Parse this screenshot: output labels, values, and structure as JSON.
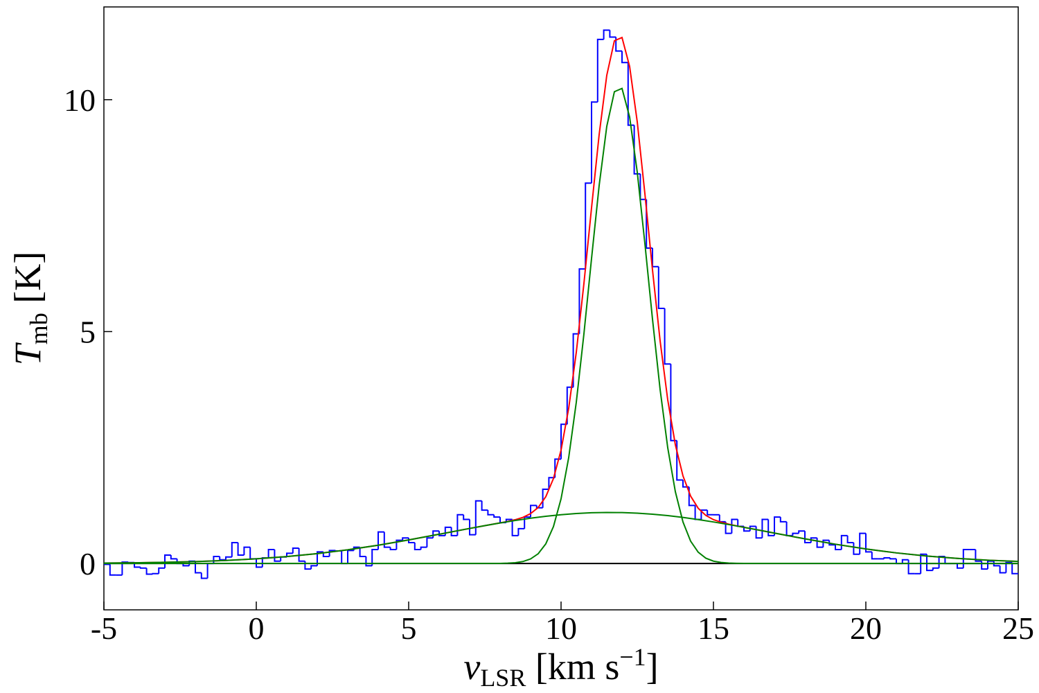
{
  "chart_data": {
    "type": "line",
    "xlabel": [
      "v",
      "LSR",
      " [km s",
      "−1",
      "]"
    ],
    "ylabel": [
      "T",
      "mb",
      " [K]"
    ],
    "xlim": [
      -5,
      25
    ],
    "ylim": [
      -1,
      12
    ],
    "xticks": [
      -5,
      0,
      5,
      10,
      15,
      20,
      25
    ],
    "yticks": [
      0,
      5,
      10
    ],
    "series": [
      {
        "color": "#000000",
        "drawstyle": "default",
        "x": [
          -5,
          25
        ],
        "values": [
          0,
          0
        ]
      },
      {
        "color": "#0000ff",
        "drawstyle": "steps-mid",
        "x": [
          -4.9,
          -4.7,
          -4.5,
          -4.3,
          -4.1,
          -3.9,
          -3.7,
          -3.5,
          -3.3,
          -3.1,
          -2.9,
          -2.7,
          -2.5,
          -2.3,
          -2.1,
          -1.9,
          -1.7,
          -1.5,
          -1.3,
          -1.1,
          -0.9,
          -0.7,
          -0.5,
          -0.3,
          -0.1,
          0.1,
          0.3,
          0.5,
          0.7,
          0.9,
          1.1,
          1.3,
          1.5,
          1.7,
          1.9,
          2.1,
          2.3,
          2.5,
          2.7,
          2.9,
          3.1,
          3.3,
          3.5,
          3.7,
          3.9,
          4.1,
          4.3,
          4.5,
          4.7,
          4.9,
          5.1,
          5.3,
          5.5,
          5.7,
          5.9,
          6.1,
          6.3,
          6.5,
          6.7,
          6.9,
          7.1,
          7.3,
          7.5,
          7.7,
          7.9,
          8.1,
          8.3,
          8.5,
          8.7,
          8.9,
          9.1,
          9.3,
          9.5,
          9.7,
          9.9,
          10.1,
          10.3,
          10.5,
          10.7,
          10.9,
          11.1,
          11.3,
          11.5,
          11.7,
          11.9,
          12.1,
          12.3,
          12.5,
          12.7,
          12.9,
          13.1,
          13.3,
          13.5,
          13.7,
          13.9,
          14.1,
          14.3,
          14.5,
          14.7,
          14.9,
          15.1,
          15.3,
          15.5,
          15.7,
          15.9,
          16.1,
          16.3,
          16.5,
          16.7,
          16.9,
          17.1,
          17.3,
          17.5,
          17.7,
          17.9,
          18.1,
          18.3,
          18.5,
          18.7,
          18.9,
          19.1,
          19.3,
          19.5,
          19.7,
          19.9,
          20.1,
          20.3,
          20.5,
          20.7,
          20.9,
          21.1,
          21.3,
          21.5,
          21.7,
          21.9,
          22.1,
          22.3,
          22.5,
          22.7,
          22.9,
          23.1,
          23.3,
          23.5,
          23.7,
          23.9,
          24.1,
          24.3,
          24.5,
          24.7,
          24.9
        ],
        "values": [
          -0.02,
          -0.25,
          -0.25,
          0.03,
          0.02,
          -0.08,
          -0.1,
          -0.23,
          -0.22,
          -0.1,
          0.18,
          0.1,
          0.0,
          -0.05,
          0.05,
          -0.2,
          -0.32,
          0.0,
          0.15,
          0.08,
          0.14,
          0.45,
          0.18,
          0.35,
          0.1,
          -0.08,
          0.12,
          0.3,
          0.05,
          0.14,
          0.22,
          0.33,
          0.05,
          -0.12,
          -0.05,
          0.25,
          0.15,
          0.28,
          0.27,
          0.0,
          0.28,
          0.35,
          0.15,
          -0.05,
          0.3,
          0.68,
          0.35,
          0.3,
          0.5,
          0.55,
          0.45,
          0.3,
          0.35,
          0.55,
          0.7,
          0.6,
          0.78,
          0.6,
          1.05,
          0.95,
          0.62,
          1.35,
          1.15,
          1.05,
          1.0,
          0.88,
          0.95,
          0.6,
          0.75,
          1.0,
          1.25,
          1.2,
          1.6,
          1.85,
          2.25,
          3.0,
          3.8,
          4.95,
          6.35,
          8.2,
          9.95,
          11.3,
          11.5,
          11.35,
          11.05,
          10.8,
          9.45,
          8.4,
          7.85,
          6.8,
          6.4,
          5.5,
          4.3,
          2.65,
          1.8,
          1.65,
          1.25,
          0.95,
          1.15,
          1.05,
          1.05,
          0.9,
          0.65,
          0.95,
          0.8,
          0.7,
          0.8,
          0.55,
          0.95,
          0.6,
          1.0,
          0.9,
          0.6,
          0.65,
          0.7,
          0.45,
          0.55,
          0.35,
          0.5,
          0.4,
          0.3,
          0.6,
          0.45,
          0.2,
          0.65,
          0.25,
          0.1,
          0.1,
          0.12,
          0.1,
          0.0,
          0.08,
          -0.22,
          -0.22,
          0.2,
          -0.15,
          -0.1,
          0.15,
          0.0,
          0.0,
          -0.1,
          0.3,
          0.3,
          0.05,
          -0.12,
          0.05,
          -0.05,
          -0.2,
          0.02,
          -0.22
        ]
      },
      {
        "color": "#ff0000",
        "drawstyle": "default",
        "x": [
          -5,
          -4,
          -3,
          -2,
          -1,
          0,
          1,
          2,
          3,
          4,
          5,
          6,
          7,
          7.5,
          8,
          8.25,
          8.5,
          8.75,
          9,
          9.25,
          9.5,
          9.75,
          10,
          10.25,
          10.5,
          10.75,
          11,
          11.25,
          11.5,
          11.75,
          12,
          12.25,
          12.5,
          12.75,
          13,
          13.25,
          13.5,
          13.75,
          14,
          14.25,
          14.5,
          14.75,
          15,
          15.25,
          15.5,
          15.75,
          16,
          16.5,
          17,
          18,
          19,
          20,
          21,
          22,
          23,
          24,
          25
        ],
        "values": [
          0.008,
          0.014,
          0.025,
          0.041,
          0.065,
          0.1,
          0.149,
          0.213,
          0.295,
          0.393,
          0.507,
          0.63,
          0.755,
          0.816,
          0.875,
          0.906,
          0.944,
          0.994,
          1.074,
          1.207,
          1.441,
          1.83,
          2.445,
          3.345,
          4.554,
          6.036,
          7.668,
          9.248,
          10.526,
          11.271,
          11.34,
          10.715,
          9.522,
          7.976,
          6.33,
          4.8,
          3.527,
          2.56,
          1.888,
          1.454,
          1.19,
          1.036,
          0.945,
          0.889,
          0.847,
          0.813,
          0.78,
          0.718,
          0.655,
          0.531,
          0.415,
          0.313,
          0.228,
          0.16,
          0.109,
          0.071,
          0.045
        ]
      },
      {
        "color": "#008000",
        "drawstyle": "default",
        "x": [
          -5,
          8,
          8.25,
          8.5,
          8.75,
          9,
          9.25,
          9.5,
          9.75,
          10,
          10.25,
          10.5,
          10.75,
          11,
          11.25,
          11.5,
          11.75,
          12,
          12.25,
          12.5,
          12.75,
          13,
          13.25,
          13.5,
          13.75,
          14,
          14.25,
          14.5,
          14.75,
          15,
          15.25,
          15.5,
          15.75,
          16,
          25
        ],
        "values": [
          0,
          0.002,
          0.006,
          0.017,
          0.042,
          0.098,
          0.21,
          0.424,
          0.795,
          1.394,
          2.28,
          3.477,
          4.95,
          6.575,
          8.15,
          9.426,
          10.172,
          10.243,
          9.624,
          8.438,
          6.902,
          5.268,
          3.752,
          2.495,
          1.547,
          0.895,
          0.483,
          0.243,
          0.114,
          0.05,
          0.021,
          0.008,
          0.003,
          0.001,
          0
        ]
      },
      {
        "color": "#008000",
        "drawstyle": "default",
        "x": [
          -5,
          -4,
          -3,
          -2,
          -1,
          0,
          1,
          2,
          3,
          4,
          5,
          6,
          7,
          7.5,
          8,
          8.5,
          9,
          9.5,
          10,
          10.5,
          11,
          11.5,
          12,
          12.5,
          13,
          13.5,
          14,
          14.5,
          15,
          15.5,
          16,
          16.5,
          17,
          18,
          19,
          20,
          21,
          22,
          23,
          24,
          25
        ],
        "values": [
          0.008,
          0.014,
          0.025,
          0.041,
          0.065,
          0.1,
          0.149,
          0.213,
          0.295,
          0.393,
          0.507,
          0.63,
          0.755,
          0.816,
          0.873,
          0.927,
          0.976,
          1.017,
          1.051,
          1.077,
          1.093,
          1.1,
          1.097,
          1.084,
          1.062,
          1.032,
          0.993,
          0.947,
          0.895,
          0.839,
          0.779,
          0.718,
          0.655,
          0.531,
          0.415,
          0.313,
          0.228,
          0.16,
          0.109,
          0.071,
          0.045
        ]
      }
    ]
  }
}
